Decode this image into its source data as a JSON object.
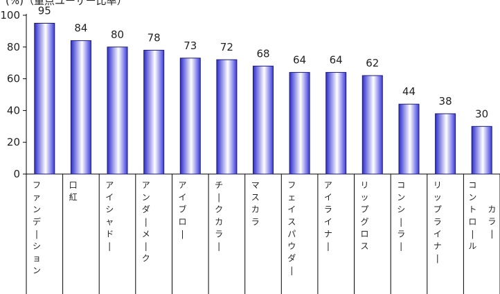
{
  "chart_data": {
    "type": "bar",
    "top_label": "(%)（重点ユーザー比率）",
    "categories": [
      [
        "ファンデーション"
      ],
      [
        "口紅"
      ],
      [
        "アイシャドー"
      ],
      [
        "アンダーメーク"
      ],
      [
        "アイブロー"
      ],
      [
        "チークカラー"
      ],
      [
        "マスカラ"
      ],
      [
        "フェイスパウダー"
      ],
      [
        "アイライナー"
      ],
      [
        "リップグロス"
      ],
      [
        "コンシーラー"
      ],
      [
        "リップライナー"
      ],
      [
        "コントロール",
        "カラー"
      ]
    ],
    "values": [
      95,
      84,
      80,
      78,
      73,
      72,
      68,
      64,
      64,
      62,
      44,
      38,
      30
    ],
    "y_ticks": [
      "0",
      "20",
      "40",
      "60",
      "80",
      "100"
    ],
    "ylim": [
      0,
      100
    ],
    "grid": false,
    "colors": {
      "bar_edge": "#1a1a7a",
      "bar_center": "#ffffff",
      "bar_side": "#3535d8",
      "axis": "#000000"
    }
  }
}
